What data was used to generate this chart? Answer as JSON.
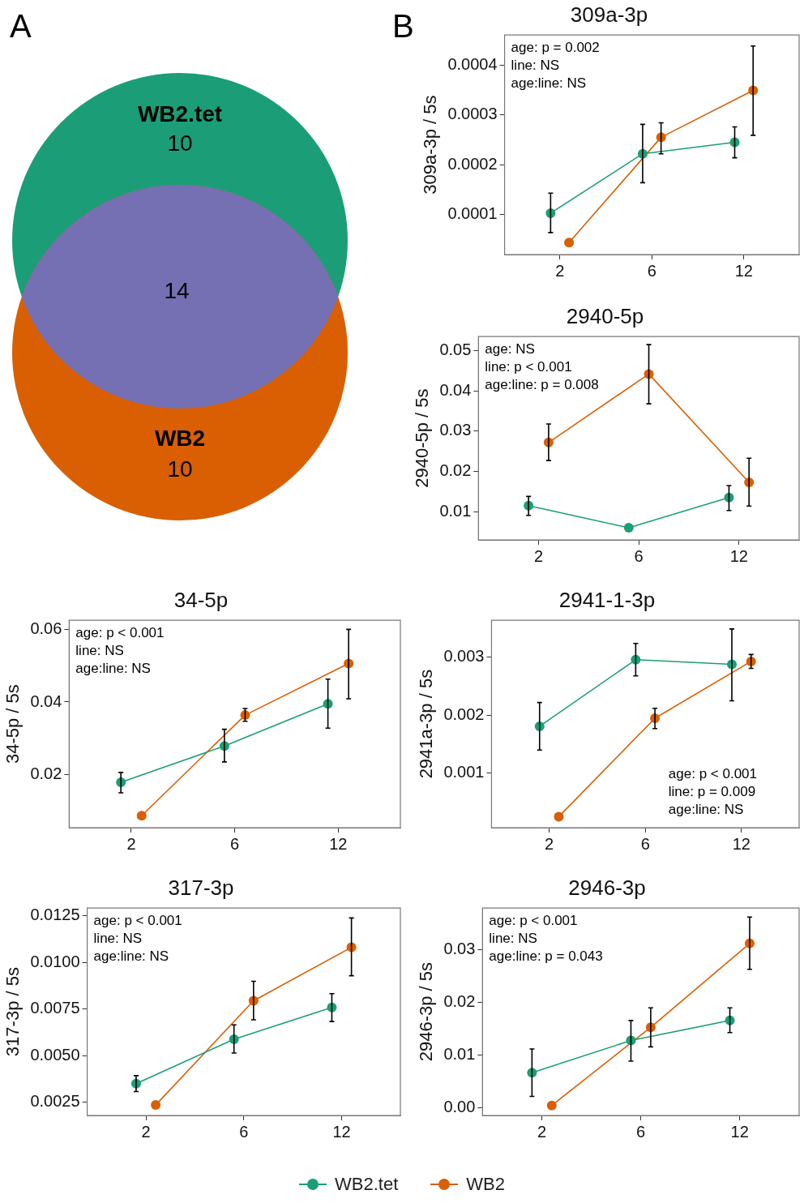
{
  "chart_data": [
    {
      "type": "other",
      "data_labels": true,
      "annotations": [
        "A"
      ],
      "categories": [
        "WB2.tet",
        null,
        "WB2"
      ],
      "values": [
        10,
        14,
        10
      ],
      "colors": [
        "#1b9e77",
        "#7570b3",
        "#d95f02"
      ]
    },
    {
      "type": "line",
      "title": "309a-3p",
      "ylabel": "309a-3p / 5s",
      "annotations": [
        "B",
        "age: p = 0.002",
        "line: NS",
        "age:line: NS"
      ],
      "categories": [
        "2",
        "6",
        "12"
      ],
      "marker": "circle",
      "ylim": [
        2e-05,
        0.00046
      ],
      "yticks": [
        {
          "value": 0.0001,
          "label": "0.0001"
        },
        {
          "value": 0.0002,
          "label": "0.0002"
        },
        {
          "value": 0.0003,
          "label": "0.0003"
        },
        {
          "value": 0.0004,
          "label": "0.0004"
        }
      ],
      "series": [
        {
          "color": "#1b9e77",
          "values": [
            0.000103,
            0.000222,
            0.000245
          ],
          "errors": [
            [
              6.4e-05,
              0.000143
            ],
            [
              0.000164,
              0.000281
            ],
            [
              0.000214,
              0.000276
            ]
          ]
        },
        {
          "color": "#d95f02",
          "values": [
            4.4e-05,
            0.000255,
            0.000349
          ],
          "errors": [
            null,
            [
              0.000222,
              0.000284
            ],
            [
              0.000259,
              0.000438
            ]
          ]
        }
      ]
    },
    {
      "type": "line",
      "title": "2940-5p",
      "ylabel": "2940-5p / 5s",
      "annotations": [
        "age: NS",
        "line: p < 0.001",
        "age:line: p = 0.008"
      ],
      "categories": [
        "2",
        "6",
        "12"
      ],
      "marker": "circle",
      "ylim": [
        0.003,
        0.0535
      ],
      "yticks": [
        {
          "value": 0.01,
          "label": "0.01"
        },
        {
          "value": 0.02,
          "label": "0.02"
        },
        {
          "value": 0.03,
          "label": "0.03"
        },
        {
          "value": 0.04,
          "label": "0.04"
        },
        {
          "value": 0.05,
          "label": "0.05"
        }
      ],
      "series": [
        {
          "color": "#1b9e77",
          "values": [
            0.0115,
            0.006,
            0.0135
          ],
          "errors": [
            [
              0.0091,
              0.0138
            ],
            null,
            [
              0.0103,
              0.0165
            ]
          ]
        },
        {
          "color": "#d95f02",
          "values": [
            0.0272,
            0.0442,
            0.0173
          ],
          "errors": [
            [
              0.0227,
              0.0318
            ],
            [
              0.0368,
              0.0515
            ],
            [
              0.0114,
              0.0233
            ]
          ]
        }
      ]
    },
    {
      "type": "line",
      "title": "34-5p",
      "ylabel": "34-5p / 5s",
      "annotations": [
        "age: p < 0.001",
        "line: NS",
        "age:line: NS"
      ],
      "categories": [
        "2",
        "6",
        "12"
      ],
      "marker": "circle",
      "ylim": [
        0.0054,
        0.0625
      ],
      "yticks": [
        {
          "value": 0.02,
          "label": "0.02"
        },
        {
          "value": 0.04,
          "label": "0.04"
        },
        {
          "value": 0.06,
          "label": "0.06"
        }
      ],
      "series": [
        {
          "color": "#1b9e77",
          "values": [
            0.0179,
            0.0279,
            0.0395
          ],
          "errors": [
            [
              0.015,
              0.0206
            ],
            [
              0.0235,
              0.0325
            ],
            [
              0.0328,
              0.0463
            ]
          ]
        },
        {
          "color": "#d95f02",
          "values": [
            0.0087,
            0.0364,
            0.0506
          ],
          "errors": [
            null,
            [
              0.0347,
              0.0382
            ],
            [
              0.0409,
              0.06
            ]
          ]
        }
      ]
    },
    {
      "type": "line",
      "title": "2941-1-3p",
      "ylabel": "2941a-3p / 5s",
      "annotations": [
        "age: p < 0.001",
        "line: p = 0.009",
        "age:line: NS"
      ],
      "categories": [
        "2",
        "6",
        "12"
      ],
      "marker": "circle",
      "ylim": [
        6e-05,
        0.00364
      ],
      "yticks": [
        {
          "value": 0.001,
          "label": "0.001"
        },
        {
          "value": 0.002,
          "label": "0.002"
        },
        {
          "value": 0.003,
          "label": "0.003"
        }
      ],
      "series": [
        {
          "color": "#1b9e77",
          "values": [
            0.00181,
            0.00296,
            0.00288
          ],
          "errors": [
            [
              0.0014,
              0.00222
            ],
            [
              0.00268,
              0.00324
            ],
            [
              0.00225,
              0.00349
            ]
          ]
        },
        {
          "color": "#d95f02",
          "values": [
            0.00025,
            0.00195,
            0.00293
          ],
          "errors": [
            null,
            [
              0.00177,
              0.00212
            ],
            [
              0.00281,
              0.00305
            ]
          ]
        }
      ]
    },
    {
      "type": "line",
      "title": "317-3p",
      "ylabel": "317-3p / 5s",
      "annotations": [
        "age: p < 0.001",
        "line: NS",
        "age:line: NS"
      ],
      "categories": [
        "2",
        "6",
        "12"
      ],
      "marker": "circle",
      "ylim": [
        0.0018,
        0.0129
      ],
      "yticks": [
        {
          "value": 0.0025,
          "label": "0.0025"
        },
        {
          "value": 0.005,
          "label": "0.0050"
        },
        {
          "value": 0.0075,
          "label": "0.0075"
        },
        {
          "value": 0.01,
          "label": "0.0100"
        },
        {
          "value": 0.0125,
          "label": "0.0125"
        }
      ],
      "series": [
        {
          "color": "#1b9e77",
          "values": [
            0.0035,
            0.00588,
            0.00758
          ],
          "errors": [
            [
              0.00308,
              0.00393
            ],
            [
              0.00514,
              0.00665
            ],
            [
              0.00683,
              0.00832
            ]
          ]
        },
        {
          "color": "#d95f02",
          "values": [
            0.00236,
            0.00794,
            0.0108
          ],
          "errors": [
            null,
            [
              0.00692,
              0.00898
            ],
            [
              0.00928,
              0.01237
            ]
          ]
        }
      ]
    },
    {
      "type": "line",
      "title": "2946-3p",
      "ylabel": "2946-3p / 5s",
      "annotations": [
        "age: p < 0.001",
        "line: NS",
        "age:line: p = 0.043"
      ],
      "categories": [
        "2",
        "6",
        "12"
      ],
      "marker": "circle",
      "legend": "bottom",
      "ylim": [
        -0.0014,
        0.0379
      ],
      "yticks": [
        {
          "value": 0,
          "label": "0.00"
        },
        {
          "value": 0.01,
          "label": "0.01"
        },
        {
          "value": 0.02,
          "label": "0.02"
        },
        {
          "value": 0.03,
          "label": "0.03"
        }
      ],
      "series": [
        {
          "name": "WB2.tet",
          "color": "#1b9e77",
          "values": [
            0.0067,
            0.0128,
            0.0166
          ],
          "errors": [
            [
              0.0022,
              0.0112
            ],
            [
              0.0089,
              0.0166
            ],
            [
              0.0143,
              0.019
            ]
          ]
        },
        {
          "name": "WB2",
          "color": "#d95f02",
          "values": [
            0.0005,
            0.0153,
            0.0312
          ],
          "errors": [
            null,
            [
              0.0116,
              0.019
            ],
            [
              0.0263,
              0.0362
            ]
          ]
        }
      ]
    }
  ]
}
